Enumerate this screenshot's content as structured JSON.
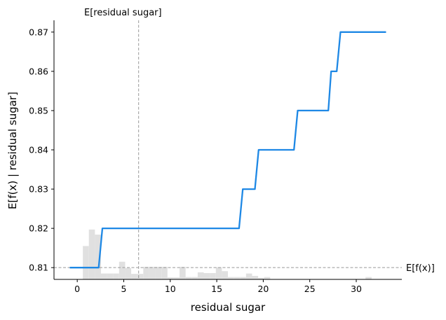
{
  "chart_data": {
    "type": "line",
    "title": "",
    "xlabel": "residual sugar",
    "ylabel": "E[f(x) | residual sugar]",
    "xlim": [
      -2.5,
      34.9
    ],
    "ylim": [
      0.807,
      0.873
    ],
    "xticks": [
      0,
      5,
      10,
      15,
      20,
      25,
      30
    ],
    "yticks": [
      0.81,
      0.82,
      0.83,
      0.84,
      0.85,
      0.86,
      0.87
    ],
    "xtick_labels": [
      "0",
      "5",
      "10",
      "15",
      "20",
      "25",
      "30"
    ],
    "ytick_labels": [
      "0.81",
      "0.82",
      "0.83",
      "0.84",
      "0.85",
      "0.86",
      "0.87"
    ],
    "grid": false,
    "line_color": "#1e88e5",
    "series": [
      {
        "x": [
          -0.8,
          2.3,
          2.7,
          17.4,
          17.8,
          19.1,
          19.5,
          23.3,
          23.7,
          27.0,
          27.3,
          27.9,
          28.3,
          33.2
        ],
        "y": [
          0.81,
          0.81,
          0.82,
          0.82,
          0.83,
          0.83,
          0.84,
          0.84,
          0.85,
          0.85,
          0.86,
          0.86,
          0.87,
          0.87
        ]
      }
    ],
    "reference_lines": {
      "vertical": {
        "x": 6.6,
        "label": "E[residual sugar]",
        "color": "#999999"
      },
      "horizontal": {
        "y": 0.81,
        "label": "E[f(x)]",
        "color": "#999999"
      }
    },
    "histogram": {
      "color": "#e0e0e0",
      "bin_edges": [
        0.6,
        1.25,
        1.9,
        2.55,
        3.2,
        3.85,
        4.5,
        5.15,
        5.8,
        6.45,
        7.1,
        7.75,
        8.4,
        9.05,
        9.7,
        10.35,
        11.0,
        11.65,
        12.3,
        12.95,
        13.6,
        14.25,
        14.9,
        15.55,
        16.2,
        16.85,
        17.5,
        18.15,
        18.8,
        19.45,
        20.1,
        20.75,
        31.0,
        31.65
      ],
      "heights": [
        0.0085,
        0.0127,
        0.0114,
        0.0015,
        0.0015,
        0.0015,
        0.0045,
        0.0029,
        0.0014,
        0.0014,
        0.0032,
        0.0032,
        0.0032,
        0.0032,
        0.0005,
        0.0005,
        0.0032,
        0.0006,
        0.0006,
        0.0018,
        0.0016,
        0.0016,
        0.0031,
        0.0021,
        0.0006,
        0.0006,
        0.0006,
        0.0015,
        0.0009,
        0.0004,
        0.0006,
        0.0,
        0.0006
      ]
    }
  }
}
